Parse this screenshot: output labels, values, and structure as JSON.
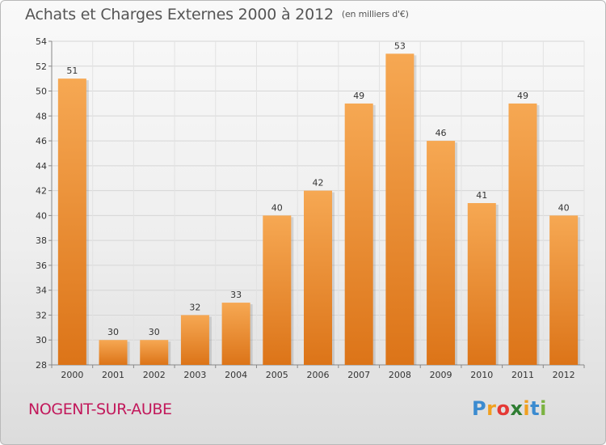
{
  "header": {
    "title": "Achats et Charges Externes 2000 à 2012",
    "subtitle": "(en milliers d'€)"
  },
  "footer": {
    "place": "NOGENT-SUR-AUBE",
    "brand": {
      "letters": [
        "P",
        "r",
        "o",
        "x",
        "i",
        "t",
        "i"
      ],
      "colors": [
        "#3b8bd0",
        "#f0a020",
        "#e53935",
        "#2e7d32",
        "#f0a020",
        "#3b8bd0",
        "#7cb342"
      ]
    }
  },
  "chart_data": {
    "type": "bar",
    "categories": [
      "2000",
      "2001",
      "2002",
      "2003",
      "2004",
      "2005",
      "2006",
      "2007",
      "2008",
      "2009",
      "2010",
      "2011",
      "2012"
    ],
    "values": [
      51,
      30,
      30,
      32,
      33,
      40,
      42,
      49,
      53,
      46,
      41,
      49,
      40
    ],
    "ylim": [
      28,
      54
    ],
    "yticks": [
      28,
      30,
      32,
      34,
      36,
      38,
      40,
      42,
      44,
      46,
      48,
      50,
      52,
      54
    ],
    "grid": true,
    "bar_color": "#f0a04b",
    "bar_color_dark": "#e07a1c"
  }
}
